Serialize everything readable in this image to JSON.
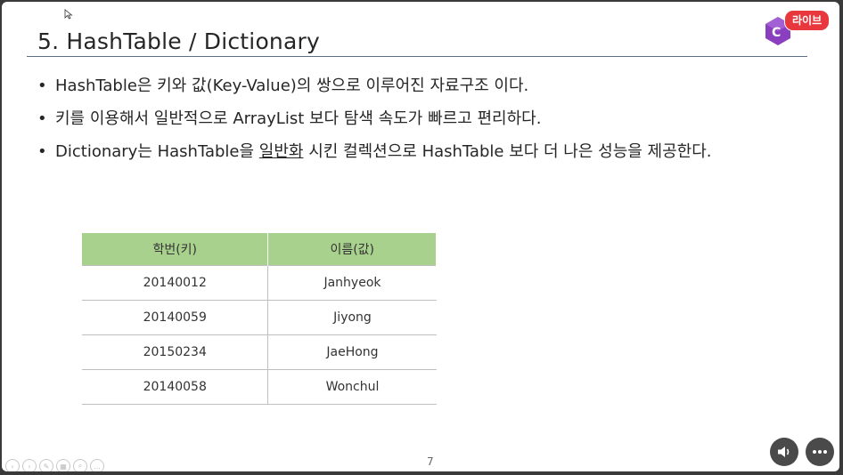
{
  "slide": {
    "title": "5. HashTable / Dictionary",
    "bullets": [
      {
        "text": "HashTable은 키와 값(Key-Value)의 쌍으로 이루어진 자료구조 이다."
      },
      {
        "text": "키를 이용해서 일반적으로 ArrayList 보다 탐색 속도가 빠르고 편리하다."
      },
      {
        "pre": "Dictionary는 HashTable을 ",
        "underlined": "일반화",
        "post": " 시킨 컬렉션으로 HashTable 보다 더 나은 성능을 제공한다."
      }
    ],
    "bullet_symbol": "•",
    "page_number": "7"
  },
  "badge": {
    "label": "라이브"
  },
  "table": {
    "headers": [
      "학번(키)",
      "이름(값)"
    ],
    "rows": [
      [
        "20140012",
        "Janhyeok"
      ],
      [
        "20140059",
        "Jiyong"
      ],
      [
        "20150234",
        "JaeHong"
      ],
      [
        "20140058",
        "Wonchul"
      ]
    ]
  },
  "colors": {
    "header_bg": "#a9d18e",
    "logo_purple": "#8a3fbf",
    "badge_red": "#e8383d"
  },
  "icons": {
    "logo": "csharp-logo-icon",
    "cursor": "mouse-cursor-icon",
    "audio": "speaker-icon",
    "more": "more-dots-icon"
  }
}
